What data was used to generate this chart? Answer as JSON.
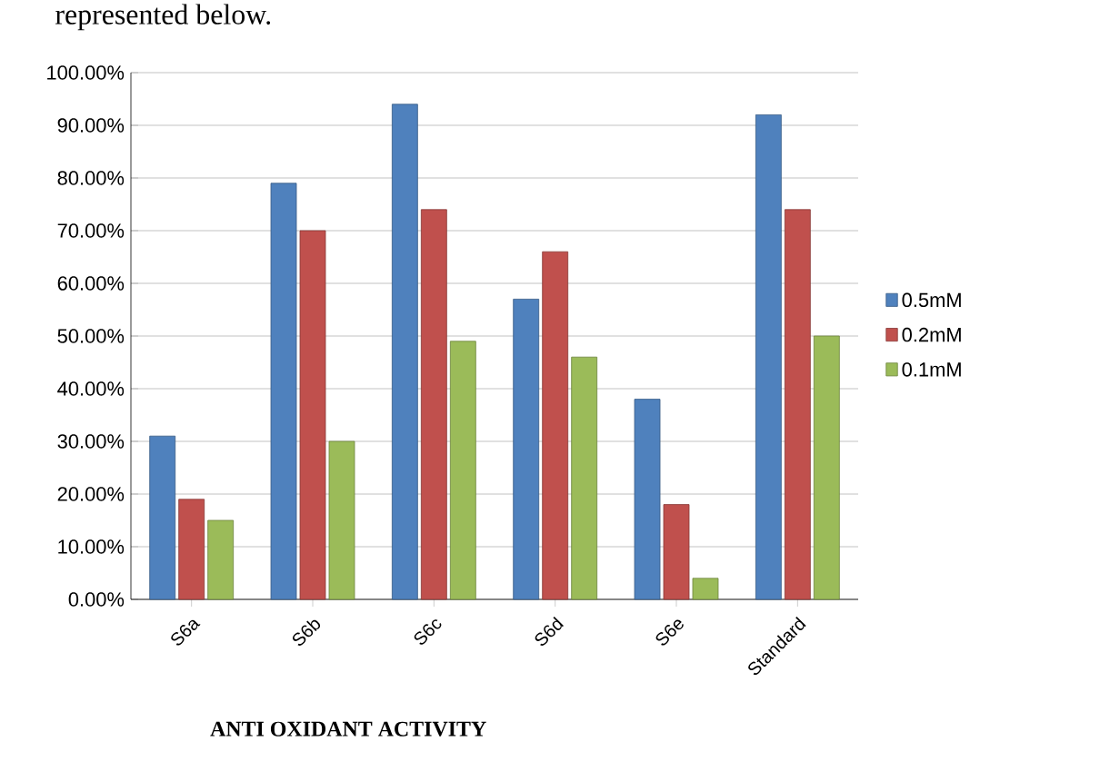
{
  "chart_data": {
    "type": "bar",
    "xlabel": "ANTI OXIDANT ACTIVITY",
    "annotations": [
      "represented below."
    ],
    "categories": [
      "S6a",
      "S6b",
      "S6c",
      "S6d",
      "S6e",
      "Standard"
    ],
    "series": [
      {
        "name": "0.5mM",
        "color": "#4f81bd",
        "values": [
          31,
          79,
          94,
          57,
          38,
          92
        ]
      },
      {
        "name": "0.2mM",
        "color": "#c0504d",
        "values": [
          19,
          70,
          74,
          66,
          18,
          74
        ]
      },
      {
        "name": "0.1mM",
        "color": "#9bbb59",
        "values": [
          15,
          30,
          49,
          46,
          4,
          50
        ]
      }
    ],
    "ylim": [
      0,
      100
    ],
    "yticks": [
      {
        "value": 0,
        "label": "0.00%"
      },
      {
        "value": 10,
        "label": "10.00%"
      },
      {
        "value": 20,
        "label": "20.00%"
      },
      {
        "value": 30,
        "label": "30.00%"
      },
      {
        "value": 40,
        "label": "40.00%"
      },
      {
        "value": 50,
        "label": "50.00%"
      },
      {
        "value": 60,
        "label": "60.00%"
      },
      {
        "value": 70,
        "label": "70.00%"
      },
      {
        "value": 80,
        "label": "80.00%"
      },
      {
        "value": 90,
        "label": "90.00%"
      },
      {
        "value": 100,
        "label": "100.00%"
      }
    ],
    "grid": "y",
    "legend": "right"
  }
}
